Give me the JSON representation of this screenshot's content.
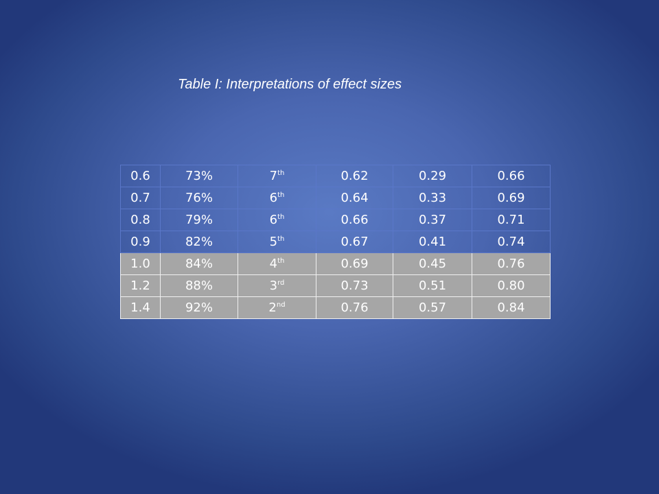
{
  "title": "Table I: Interpretations of effect sizes",
  "colors": {
    "shaded_row": "#a6a6a6",
    "background": "#4a66b0",
    "text": "#ffffff"
  },
  "rows": [
    {
      "shaded": false,
      "cells": [
        "0.6",
        "73%",
        [
          "7",
          "th"
        ],
        "0.62",
        "0.29",
        "0.66"
      ]
    },
    {
      "shaded": false,
      "cells": [
        "0.7",
        "76%",
        [
          "6",
          "th"
        ],
        "0.64",
        "0.33",
        "0.69"
      ]
    },
    {
      "shaded": false,
      "cells": [
        "0.8",
        "79%",
        [
          "6",
          "th"
        ],
        "0.66",
        "0.37",
        "0.71"
      ]
    },
    {
      "shaded": false,
      "cells": [
        "0.9",
        "82%",
        [
          "5",
          "th"
        ],
        "0.67",
        "0.41",
        "0.74"
      ]
    },
    {
      "shaded": true,
      "cells": [
        "1.0",
        "84%",
        [
          "4",
          "th"
        ],
        "0.69",
        "0.45",
        "0.76"
      ]
    },
    {
      "shaded": true,
      "cells": [
        "1.2",
        "88%",
        [
          "3",
          "rd"
        ],
        "0.73",
        "0.51",
        "0.80"
      ]
    },
    {
      "shaded": true,
      "cells": [
        "1.4",
        "92%",
        [
          "2",
          "nd"
        ],
        "0.76",
        "0.57",
        "0.84"
      ]
    }
  ]
}
